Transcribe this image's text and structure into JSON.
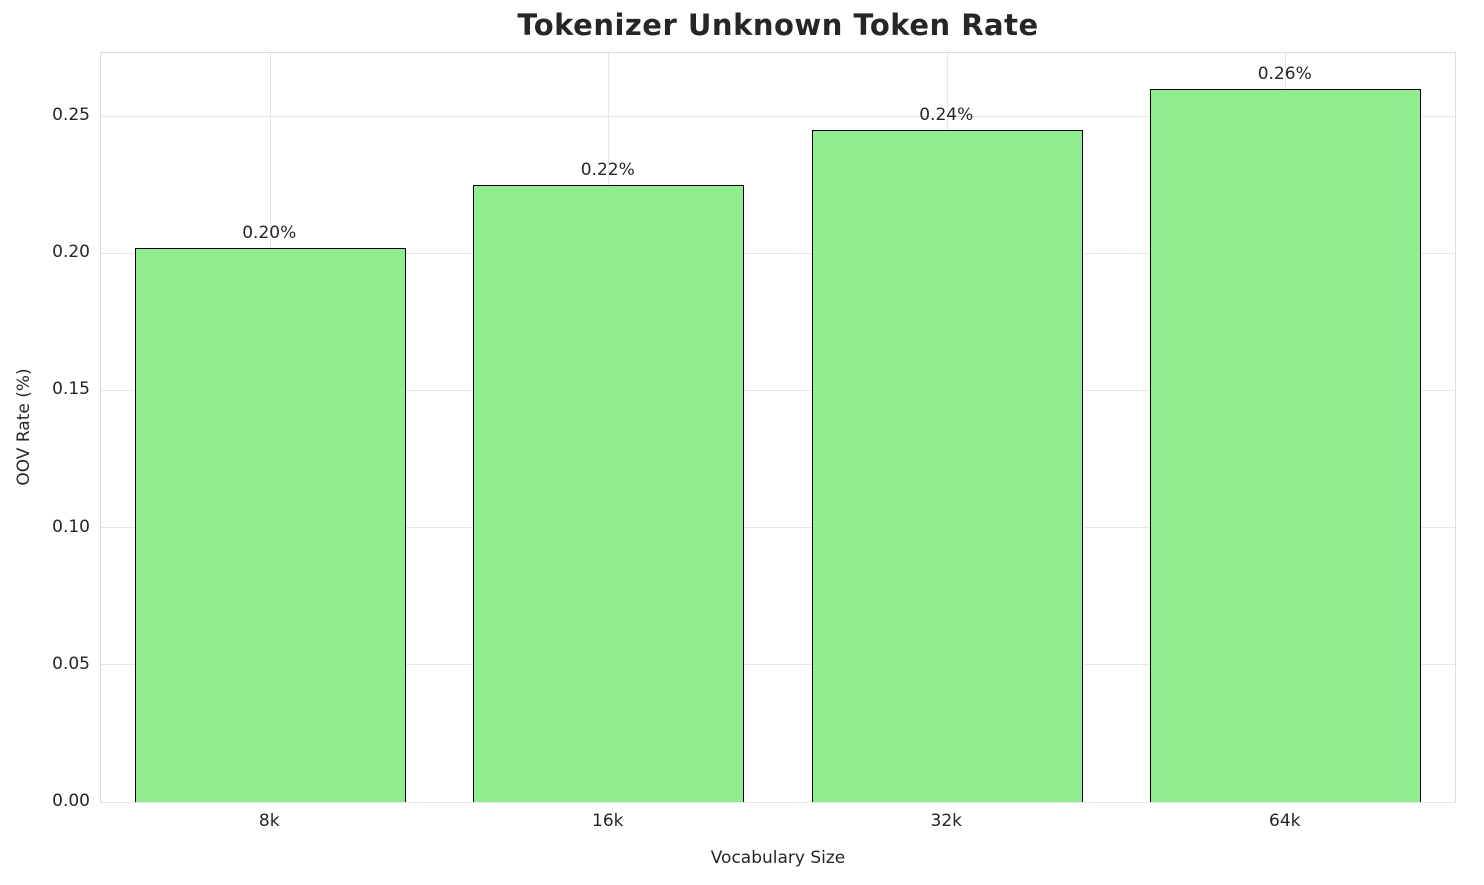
{
  "chart_data": {
    "type": "bar",
    "title": "Tokenizer Unknown Token Rate",
    "xlabel": "Vocabulary Size",
    "ylabel": "OOV Rate (%)",
    "categories": [
      "8k",
      "16k",
      "32k",
      "64k"
    ],
    "values": [
      0.202,
      0.225,
      0.245,
      0.26
    ],
    "bar_labels": [
      "0.20%",
      "0.22%",
      "0.24%",
      "0.26%"
    ],
    "yticks": [
      0,
      0.05,
      0.1,
      0.15,
      0.2,
      0.25
    ],
    "ytick_labels": [
      "0.00",
      "0.05",
      "0.10",
      "0.15",
      "0.20",
      "0.25"
    ],
    "ylim": [
      0,
      0.273
    ],
    "grid": true,
    "legend": "none",
    "bar_color": "#90EE90",
    "bar_edge_color": "#000000",
    "grid_color": "#e7e7e7",
    "background_color": "#ffffff"
  }
}
